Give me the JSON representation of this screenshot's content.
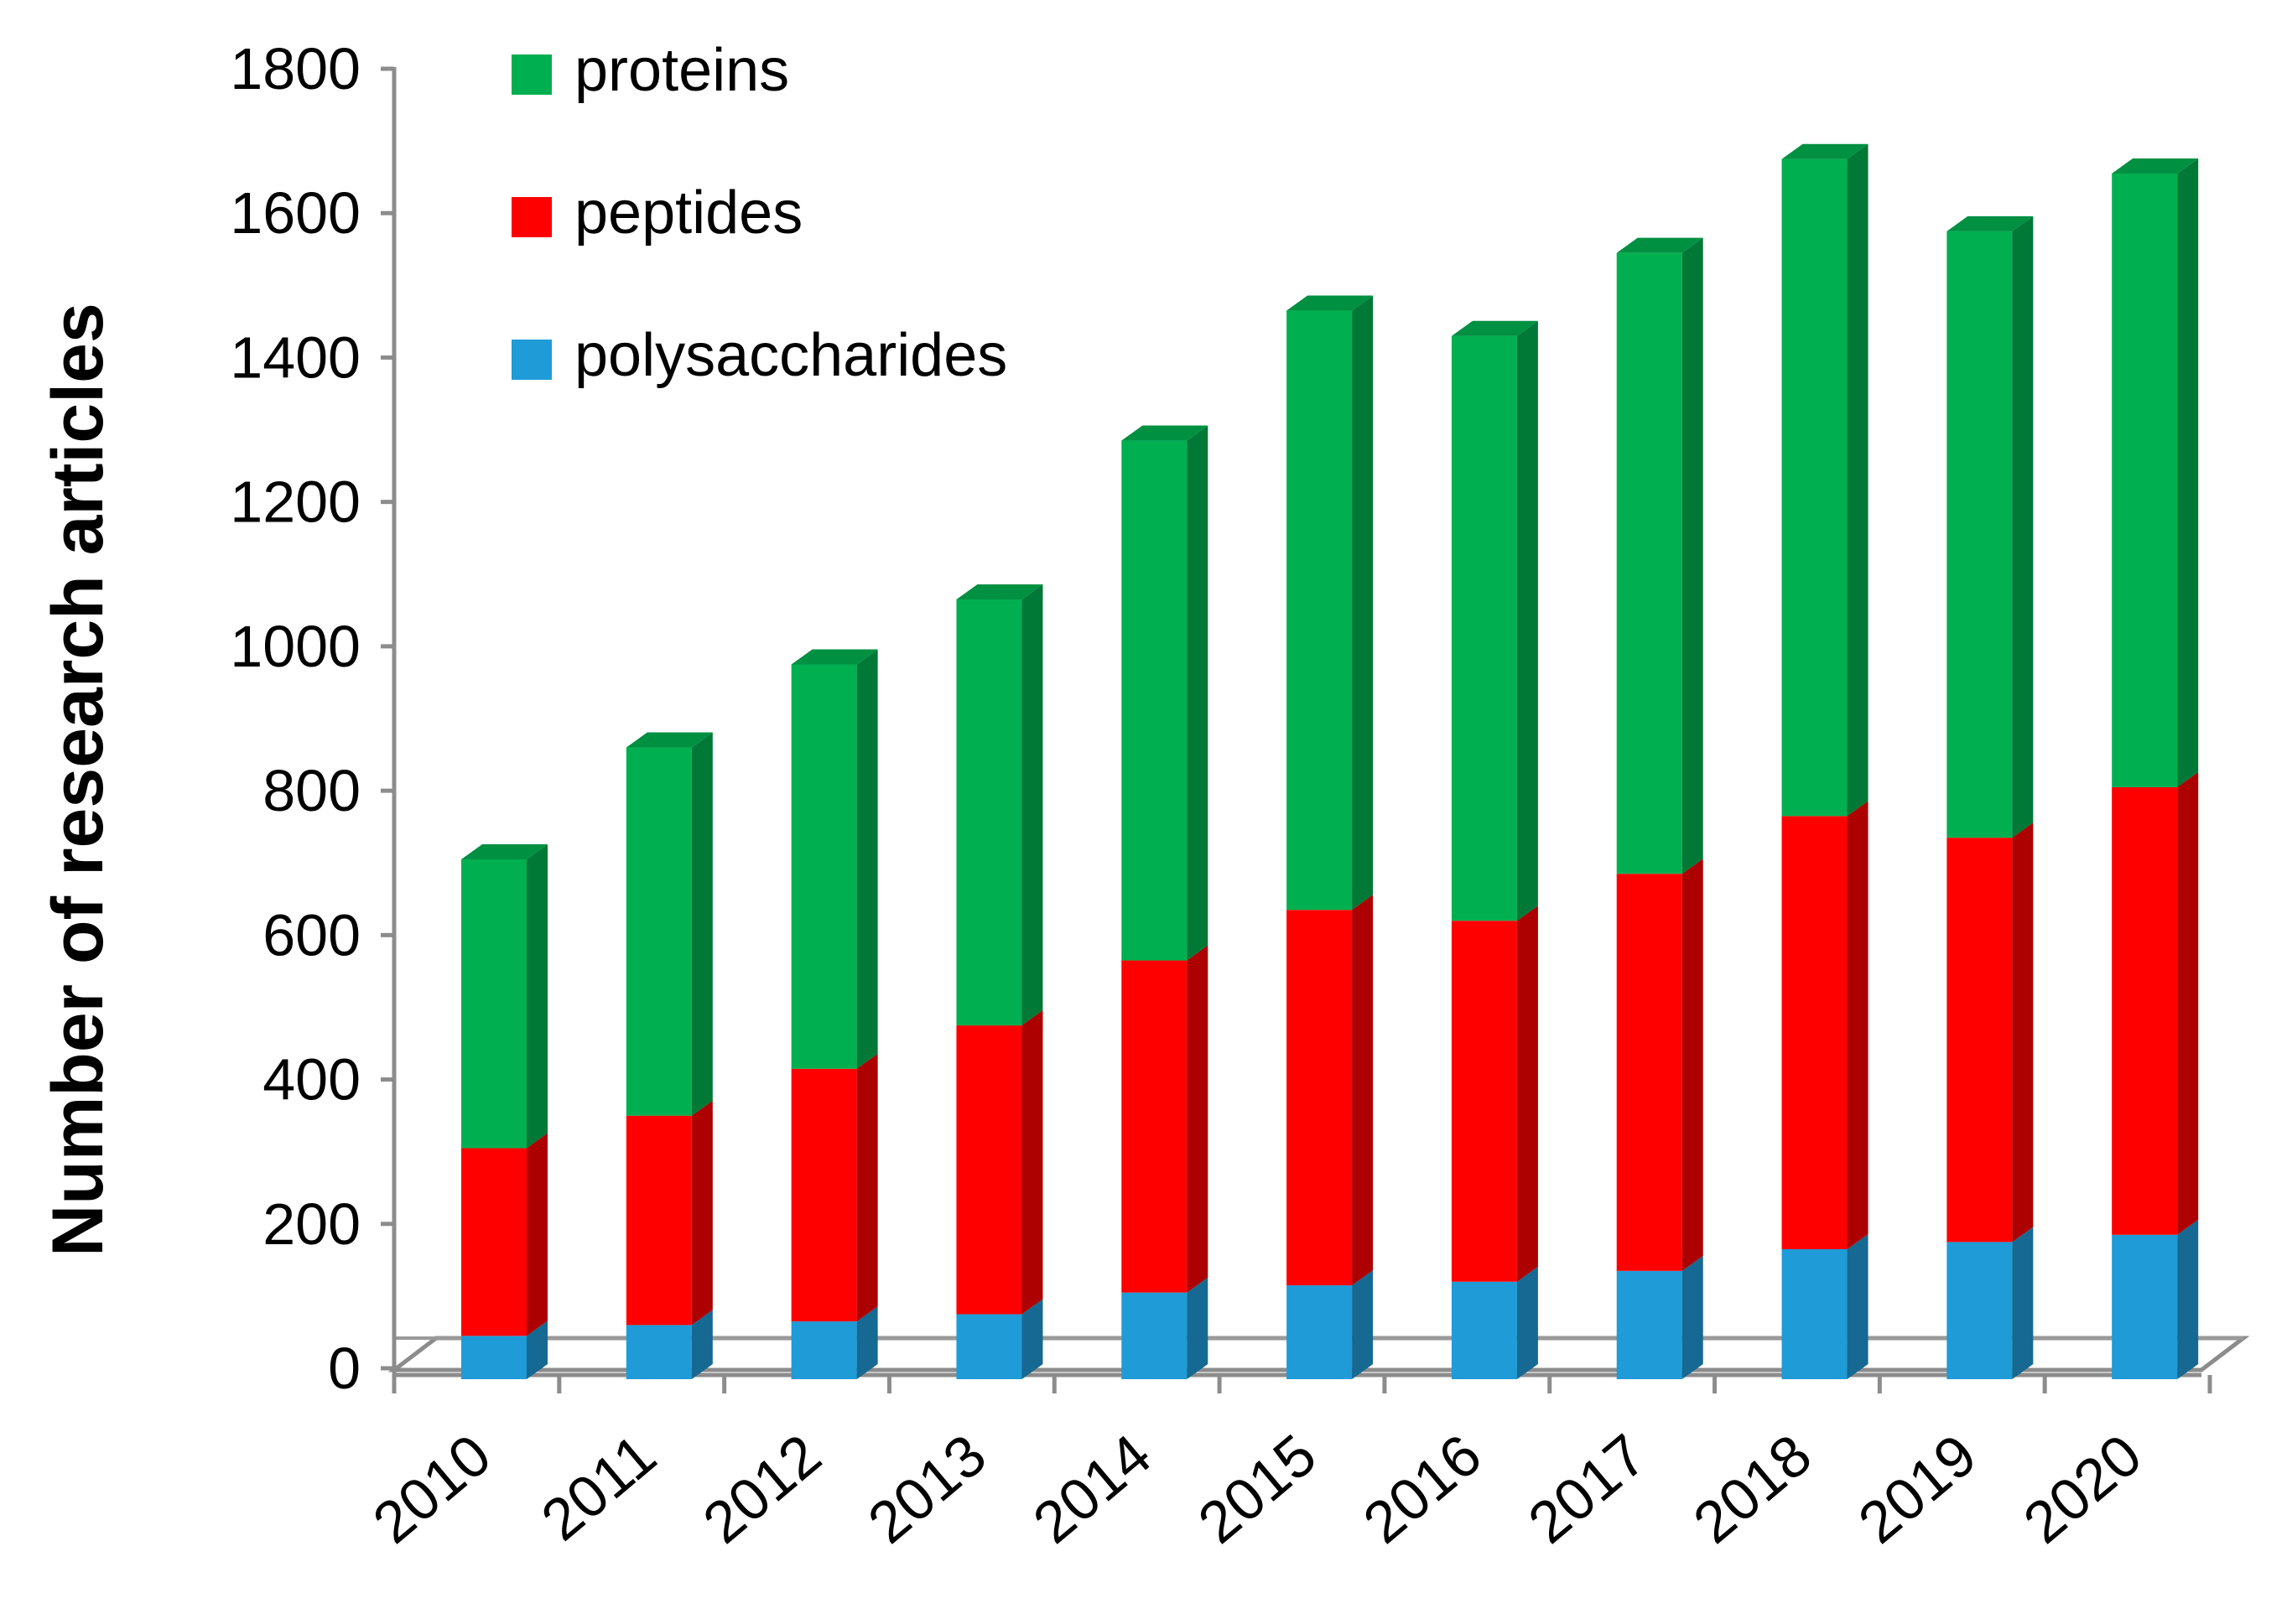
{
  "chart_data": {
    "type": "bar",
    "stacked": true,
    "style": "3d",
    "title": "",
    "xlabel": "",
    "ylabel": "Number of research articles",
    "ylim": [
      0,
      1800
    ],
    "yticks": [
      0,
      200,
      400,
      600,
      800,
      1000,
      1200,
      1400,
      1600,
      1800
    ],
    "grid": false,
    "legend_position": "top-left",
    "categories": [
      "2010",
      "2011",
      "2012",
      "2013",
      "2014",
      "2015",
      "2016",
      "2017",
      "2018",
      "2019",
      "2020"
    ],
    "series": [
      {
        "name": "polysaccharides",
        "color": "#1f9bd7",
        "values": [
          60,
          75,
          80,
          90,
          120,
          130,
          135,
          150,
          180,
          190,
          200
        ]
      },
      {
        "name": "peptides",
        "color": "#ff0000",
        "values": [
          260,
          290,
          350,
          400,
          460,
          520,
          500,
          550,
          600,
          560,
          620
        ]
      },
      {
        "name": "proteins",
        "color": "#00b050",
        "values": [
          400,
          510,
          560,
          590,
          720,
          830,
          810,
          860,
          910,
          840,
          850
        ]
      }
    ],
    "legend_order": [
      "proteins",
      "peptides",
      "polysaccharides"
    ]
  }
}
